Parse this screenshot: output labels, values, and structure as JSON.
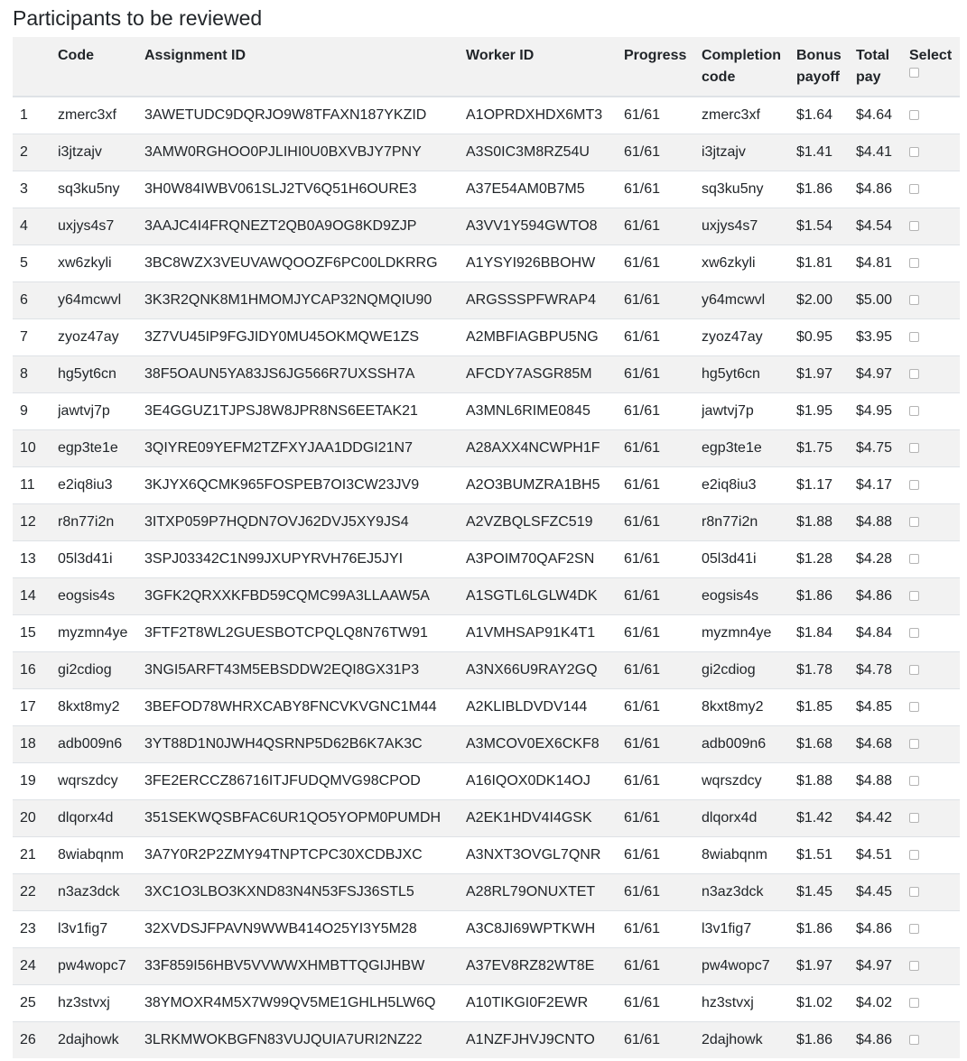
{
  "title": "Participants to be reviewed",
  "columns": {
    "index": "",
    "code": "Code",
    "assignment_id": "Assignment ID",
    "worker_id": "Worker ID",
    "progress": "Progress",
    "completion_code": "Completion code",
    "bonus_payoff": "Bonus payoff",
    "total_pay": "Total pay",
    "select": "Select"
  },
  "rows": [
    {
      "index": "1",
      "code": "zmerc3xf",
      "assignment_id": "3AWETUDC9DQRJO9W8TFAXN187YKZID",
      "worker_id": "A1OPRDXHDX6MT3",
      "progress": "61/61",
      "completion_code": "zmerc3xf",
      "bonus_payoff": "$1.64",
      "total_pay": "$4.64"
    },
    {
      "index": "2",
      "code": "i3jtzajv",
      "assignment_id": "3AMW0RGHOO0PJLIHI0U0BXVBJY7PNY",
      "worker_id": "A3S0IC3M8RZ54U",
      "progress": "61/61",
      "completion_code": "i3jtzajv",
      "bonus_payoff": "$1.41",
      "total_pay": "$4.41"
    },
    {
      "index": "3",
      "code": "sq3ku5ny",
      "assignment_id": "3H0W84IWBV061SLJ2TV6Q51H6OURE3",
      "worker_id": "A37E54AM0B7M5",
      "progress": "61/61",
      "completion_code": "sq3ku5ny",
      "bonus_payoff": "$1.86",
      "total_pay": "$4.86"
    },
    {
      "index": "4",
      "code": "uxjys4s7",
      "assignment_id": "3AAJC4I4FRQNEZT2QB0A9OG8KD9ZJP",
      "worker_id": "A3VV1Y594GWTO8",
      "progress": "61/61",
      "completion_code": "uxjys4s7",
      "bonus_payoff": "$1.54",
      "total_pay": "$4.54"
    },
    {
      "index": "5",
      "code": "xw6zkyli",
      "assignment_id": "3BC8WZX3VEUVAWQOOZF6PC00LDKRRG",
      "worker_id": "A1YSYI926BBOHW",
      "progress": "61/61",
      "completion_code": "xw6zkyli",
      "bonus_payoff": "$1.81",
      "total_pay": "$4.81"
    },
    {
      "index": "6",
      "code": "y64mcwvl",
      "assignment_id": "3K3R2QNK8M1HMOMJYCAP32NQMQIU90",
      "worker_id": "ARGSSSPFWRAP4",
      "progress": "61/61",
      "completion_code": "y64mcwvl",
      "bonus_payoff": "$2.00",
      "total_pay": "$5.00"
    },
    {
      "index": "7",
      "code": "zyoz47ay",
      "assignment_id": "3Z7VU45IP9FGJIDY0MU45OKMQWE1ZS",
      "worker_id": "A2MBFIAGBPU5NG",
      "progress": "61/61",
      "completion_code": "zyoz47ay",
      "bonus_payoff": "$0.95",
      "total_pay": "$3.95"
    },
    {
      "index": "8",
      "code": "hg5yt6cn",
      "assignment_id": "38F5OAUN5YA83JS6JG566R7UXSSH7A",
      "worker_id": "AFCDY7ASGR85M",
      "progress": "61/61",
      "completion_code": "hg5yt6cn",
      "bonus_payoff": "$1.97",
      "total_pay": "$4.97"
    },
    {
      "index": "9",
      "code": "jawtvj7p",
      "assignment_id": "3E4GGUZ1TJPSJ8W8JPR8NS6EETAK21",
      "worker_id": "A3MNL6RIME0845",
      "progress": "61/61",
      "completion_code": "jawtvj7p",
      "bonus_payoff": "$1.95",
      "total_pay": "$4.95"
    },
    {
      "index": "10",
      "code": "egp3te1e",
      "assignment_id": "3QIYRE09YEFM2TZFXYJAA1DDGI21N7",
      "worker_id": "A28AXX4NCWPH1F",
      "progress": "61/61",
      "completion_code": "egp3te1e",
      "bonus_payoff": "$1.75",
      "total_pay": "$4.75"
    },
    {
      "index": "11",
      "code": "e2iq8iu3",
      "assignment_id": "3KJYX6QCMK965FOSPEB7OI3CW23JV9",
      "worker_id": "A2O3BUMZRA1BH5",
      "progress": "61/61",
      "completion_code": "e2iq8iu3",
      "bonus_payoff": "$1.17",
      "total_pay": "$4.17"
    },
    {
      "index": "12",
      "code": "r8n77i2n",
      "assignment_id": "3ITXP059P7HQDN7OVJ62DVJ5XY9JS4",
      "worker_id": "A2VZBQLSFZC519",
      "progress": "61/61",
      "completion_code": "r8n77i2n",
      "bonus_payoff": "$1.88",
      "total_pay": "$4.88"
    },
    {
      "index": "13",
      "code": "05l3d41i",
      "assignment_id": "3SPJ03342C1N99JXUPYRVH76EJ5JYI",
      "worker_id": "A3POIM70QAF2SN",
      "progress": "61/61",
      "completion_code": "05l3d41i",
      "bonus_payoff": "$1.28",
      "total_pay": "$4.28"
    },
    {
      "index": "14",
      "code": "eogsis4s",
      "assignment_id": "3GFK2QRXXKFBD59CQMC99A3LLAAW5A",
      "worker_id": "A1SGTL6LGLW4DK",
      "progress": "61/61",
      "completion_code": "eogsis4s",
      "bonus_payoff": "$1.86",
      "total_pay": "$4.86"
    },
    {
      "index": "15",
      "code": "myzmn4ye",
      "assignment_id": "3FTF2T8WL2GUESBOTCPQLQ8N76TW91",
      "worker_id": "A1VMHSAP91K4T1",
      "progress": "61/61",
      "completion_code": "myzmn4ye",
      "bonus_payoff": "$1.84",
      "total_pay": "$4.84"
    },
    {
      "index": "16",
      "code": "gi2cdiog",
      "assignment_id": "3NGI5ARFT43M5EBSDDW2EQI8GX31P3",
      "worker_id": "A3NX66U9RAY2GQ",
      "progress": "61/61",
      "completion_code": "gi2cdiog",
      "bonus_payoff": "$1.78",
      "total_pay": "$4.78"
    },
    {
      "index": "17",
      "code": "8kxt8my2",
      "assignment_id": "3BEFOD78WHRXCABY8FNCVKVGNC1M44",
      "worker_id": "A2KLIBLDVDV144",
      "progress": "61/61",
      "completion_code": "8kxt8my2",
      "bonus_payoff": "$1.85",
      "total_pay": "$4.85"
    },
    {
      "index": "18",
      "code": "adb009n6",
      "assignment_id": "3YT88D1N0JWH4QSRNP5D62B6K7AK3C",
      "worker_id": "A3MCOV0EX6CKF8",
      "progress": "61/61",
      "completion_code": "adb009n6",
      "bonus_payoff": "$1.68",
      "total_pay": "$4.68"
    },
    {
      "index": "19",
      "code": "wqrszdcy",
      "assignment_id": "3FE2ERCCZ86716ITJFUDQMVG98CPOD",
      "worker_id": "A16IQOX0DK14OJ",
      "progress": "61/61",
      "completion_code": "wqrszdcy",
      "bonus_payoff": "$1.88",
      "total_pay": "$4.88"
    },
    {
      "index": "20",
      "code": "dlqorx4d",
      "assignment_id": "351SEKWQSBFAC6UR1QO5YOPM0PUMDH",
      "worker_id": "A2EK1HDV4I4GSK",
      "progress": "61/61",
      "completion_code": "dlqorx4d",
      "bonus_payoff": "$1.42",
      "total_pay": "$4.42"
    },
    {
      "index": "21",
      "code": "8wiabqnm",
      "assignment_id": "3A7Y0R2P2ZMY94TNPTCPC30XCDBJXC",
      "worker_id": "A3NXT3OVGL7QNR",
      "progress": "61/61",
      "completion_code": "8wiabqnm",
      "bonus_payoff": "$1.51",
      "total_pay": "$4.51"
    },
    {
      "index": "22",
      "code": "n3az3dck",
      "assignment_id": "3XC1O3LBO3KXND83N4N53FSJ36STL5",
      "worker_id": "A28RL79ONUXTET",
      "progress": "61/61",
      "completion_code": "n3az3dck",
      "bonus_payoff": "$1.45",
      "total_pay": "$4.45"
    },
    {
      "index": "23",
      "code": "l3v1fig7",
      "assignment_id": "32XVDSJFPAVN9WWB414O25YI3Y5M28",
      "worker_id": "A3C8JI69WPTKWH",
      "progress": "61/61",
      "completion_code": "l3v1fig7",
      "bonus_payoff": "$1.86",
      "total_pay": "$4.86"
    },
    {
      "index": "24",
      "code": "pw4wopc7",
      "assignment_id": "33F859I56HBV5VVWWXHMBTTQGIJHBW",
      "worker_id": "A37EV8RZ82WT8E",
      "progress": "61/61",
      "completion_code": "pw4wopc7",
      "bonus_payoff": "$1.97",
      "total_pay": "$4.97"
    },
    {
      "index": "25",
      "code": "hz3stvxj",
      "assignment_id": "38YMOXR4M5X7W99QV5ME1GHLH5LW6Q",
      "worker_id": "A10TIKGI0F2EWR",
      "progress": "61/61",
      "completion_code": "hz3stvxj",
      "bonus_payoff": "$1.02",
      "total_pay": "$4.02"
    },
    {
      "index": "26",
      "code": "2dajhowk",
      "assignment_id": "3LRKMWOKBGFN83VUJQUIA7URI2NZ22",
      "worker_id": "A1NZFJHVJ9CNTO",
      "progress": "61/61",
      "completion_code": "2dajhowk",
      "bonus_payoff": "$1.86",
      "total_pay": "$4.86"
    }
  ]
}
